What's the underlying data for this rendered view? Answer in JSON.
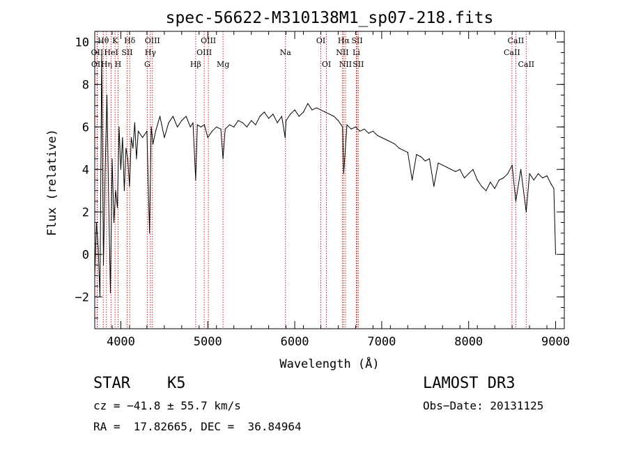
{
  "chart_data": {
    "type": "line",
    "title": "spec-56622-M310138M1_sp07-218.fits",
    "xlabel": "Wavelength (Å)",
    "ylabel": "Flux (relative)",
    "xlim": [
      3700,
      9100
    ],
    "ylim": [
      -3.5,
      10.5
    ],
    "x_ticks": [
      4000,
      5000,
      6000,
      7000,
      8000,
      9000
    ],
    "x_tick_labels": [
      "4000",
      "5000",
      "6000",
      "7000",
      "8000",
      "9000"
    ],
    "y_ticks": [
      -2,
      0,
      2,
      4,
      6,
      8,
      10
    ],
    "y_tick_labels": [
      "−2",
      "0",
      "2",
      "4",
      "6",
      "8",
      "10"
    ],
    "x_minor_step": 200,
    "y_minor_step": 0.5,
    "grid": false,
    "series": [
      {
        "name": "flux",
        "x": [
          3700,
          3720,
          3740,
          3760,
          3780,
          3800,
          3820,
          3840,
          3860,
          3880,
          3900,
          3920,
          3940,
          3960,
          3980,
          4000,
          4020,
          4040,
          4060,
          4080,
          4100,
          4120,
          4140,
          4160,
          4180,
          4200,
          4250,
          4300,
          4330,
          4350,
          4370,
          4400,
          4450,
          4500,
          4550,
          4600,
          4650,
          4700,
          4750,
          4800,
          4830,
          4861,
          4880,
          4920,
          4960,
          5000,
          5050,
          5100,
          5150,
          5175,
          5200,
          5250,
          5300,
          5350,
          5400,
          5450,
          5500,
          5550,
          5600,
          5650,
          5700,
          5750,
          5800,
          5850,
          5890,
          5900,
          5950,
          6000,
          6050,
          6100,
          6150,
          6200,
          6250,
          6300,
          6350,
          6400,
          6450,
          6500,
          6550,
          6563,
          6600,
          6650,
          6700,
          6750,
          6800,
          6850,
          6900,
          6950,
          7000,
          7050,
          7100,
          7150,
          7200,
          7250,
          7300,
          7350,
          7400,
          7450,
          7500,
          7550,
          7600,
          7650,
          7700,
          7750,
          7800,
          7850,
          7900,
          7950,
          8000,
          8050,
          8100,
          8150,
          8200,
          8250,
          8300,
          8350,
          8400,
          8450,
          8500,
          8542,
          8600,
          8662,
          8700,
          8750,
          8800,
          8850,
          8900,
          8950,
          8980,
          9000
        ],
        "y": [
          -1.0,
          1.5,
          0.3,
          -2.0,
          9.5,
          -0.5,
          4.0,
          7.5,
          2.5,
          -1.8,
          4.5,
          1.5,
          3.0,
          2.2,
          6.0,
          4.0,
          5.5,
          3.0,
          5.0,
          4.5,
          3.2,
          5.5,
          5.0,
          6.2,
          4.5,
          5.8,
          5.5,
          5.8,
          1.0,
          6.0,
          5.2,
          5.8,
          6.5,
          5.5,
          6.2,
          6.5,
          6.0,
          6.3,
          6.5,
          6.0,
          6.2,
          3.5,
          6.1,
          6.0,
          6.1,
          5.5,
          5.8,
          6.0,
          5.9,
          4.5,
          5.9,
          6.1,
          6.0,
          6.3,
          6.2,
          6.0,
          6.3,
          6.1,
          6.5,
          6.7,
          6.4,
          6.6,
          6.2,
          6.5,
          5.5,
          6.3,
          6.6,
          6.8,
          6.5,
          6.7,
          7.1,
          6.8,
          6.9,
          6.8,
          6.7,
          6.6,
          6.5,
          6.3,
          6.0,
          3.8,
          6.1,
          5.9,
          6.0,
          5.8,
          5.9,
          5.7,
          5.8,
          5.6,
          5.5,
          5.4,
          5.3,
          5.2,
          5.0,
          4.9,
          4.8,
          3.5,
          4.7,
          4.6,
          4.4,
          4.5,
          3.2,
          4.3,
          4.2,
          4.1,
          4.0,
          3.9,
          4.0,
          3.6,
          3.8,
          4.0,
          3.5,
          3.2,
          3.0,
          3.4,
          3.1,
          3.5,
          3.6,
          3.8,
          4.2,
          2.5,
          4.0,
          2.0,
          3.8,
          3.5,
          3.8,
          3.6,
          3.7,
          3.3,
          3.1,
          0.0
        ]
      }
    ],
    "spectral_lines": [
      {
        "label": "Hθ",
        "wavelength": 3798,
        "row": 1
      },
      {
        "label": "OII",
        "wavelength": 3727,
        "row": 2
      },
      {
        "label": "OII",
        "wavelength": 3730,
        "row": 3
      },
      {
        "label": "Hη",
        "wavelength": 3835,
        "row": 3
      },
      {
        "label": "HeI",
        "wavelength": 3889,
        "row": 2
      },
      {
        "label": "K",
        "wavelength": 3934,
        "row": 1
      },
      {
        "label": "SII",
        "wavelength": 4072,
        "row": 2
      },
      {
        "label": "H",
        "wavelength": 3968,
        "row": 3
      },
      {
        "label": "Hδ",
        "wavelength": 4102,
        "row": 1
      },
      {
        "label": "OIII",
        "wavelength": 4363,
        "row": 1
      },
      {
        "label": "Hγ",
        "wavelength": 4340,
        "row": 2
      },
      {
        "label": "G",
        "wavelength": 4304,
        "row": 3
      },
      {
        "label": "Hβ",
        "wavelength": 4861,
        "row": 3
      },
      {
        "label": "OIII",
        "wavelength": 4959,
        "row": 2
      },
      {
        "label": "OIII",
        "wavelength": 5007,
        "row": 1
      },
      {
        "label": "Mg",
        "wavelength": 5175,
        "row": 3
      },
      {
        "label": "Na",
        "wavelength": 5893,
        "row": 2
      },
      {
        "label": "OI",
        "wavelength": 6300,
        "row": 1
      },
      {
        "label": "OI",
        "wavelength": 6364,
        "row": 3
      },
      {
        "label": "Hα",
        "wavelength": 6563,
        "row": 1
      },
      {
        "label": "NII",
        "wavelength": 6548,
        "row": 2
      },
      {
        "label": "NII",
        "wavelength": 6584,
        "row": 3
      },
      {
        "label": "SII",
        "wavelength": 6717,
        "row": 1
      },
      {
        "label": "Li",
        "wavelength": 6708,
        "row": 2
      },
      {
        "label": "SII",
        "wavelength": 6731,
        "row": 3
      },
      {
        "label": "CaII",
        "wavelength": 8542,
        "row": 1
      },
      {
        "label": "CaII",
        "wavelength": 8498,
        "row": 2
      },
      {
        "label": "CaII",
        "wavelength": 8662,
        "row": 3
      }
    ]
  },
  "info": {
    "class": "STAR",
    "subclass": "K5",
    "survey": "LAMOST DR3",
    "redshift": "cz = −41.8 ± 55.7 km/s",
    "obs_date": "Obs−Date: 20131125",
    "coords": "RA =  17.82665, DEC =  36.84964"
  },
  "colors": {
    "line": "#000000",
    "marker": "#cc0000",
    "axis": "#000000"
  }
}
